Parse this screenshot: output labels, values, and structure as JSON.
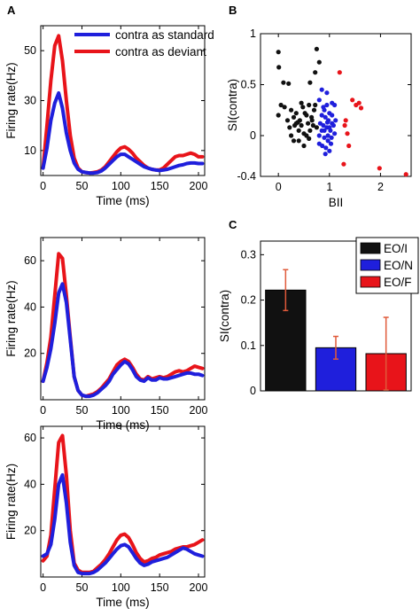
{
  "panel_letters": [
    "A",
    "B",
    "C"
  ],
  "colors": {
    "blue": "#1f1fdc",
    "red": "#e8141a",
    "black": "#111111",
    "errorbar": "#e05a3a"
  },
  "chart_data": [
    {
      "id": "A1",
      "type": "line",
      "xlabel": "Time (ms)",
      "ylabel": "Firing rate(Hz)",
      "xlim": [
        -3,
        208
      ],
      "ylim": [
        0,
        60
      ],
      "xticks": [
        0,
        50,
        100,
        150,
        200
      ],
      "yticks": [
        10,
        30,
        50
      ],
      "legend": {
        "placement": "top-right",
        "entries": [
          {
            "label": "contra as standard",
            "color": "#1f1fdc"
          },
          {
            "label": "contra as deviant",
            "color": "#e8141a"
          }
        ]
      },
      "series": [
        {
          "name": "contra as standard",
          "color": "#1f1fdc",
          "x": [
            0,
            5,
            10,
            15,
            20,
            25,
            30,
            35,
            40,
            45,
            50,
            55,
            60,
            65,
            70,
            75,
            80,
            85,
            90,
            95,
            100,
            105,
            110,
            115,
            120,
            125,
            130,
            135,
            140,
            145,
            150,
            155,
            160,
            165,
            170,
            175,
            180,
            185,
            190,
            195,
            200,
            205
          ],
          "y": [
            3,
            11,
            22,
            29,
            33,
            27,
            17,
            10,
            5,
            2.5,
            1.5,
            1.2,
            1,
            1,
            1.2,
            1.8,
            3,
            4.5,
            6,
            7.5,
            8.5,
            8.5,
            7.5,
            6.5,
            5.5,
            4.5,
            3.5,
            3,
            2.5,
            2.2,
            2,
            2.2,
            2.5,
            3,
            3.5,
            4,
            4.3,
            4.8,
            5,
            5,
            4.8,
            4.8
          ]
        },
        {
          "name": "contra as deviant",
          "color": "#e8141a",
          "x": [
            0,
            5,
            10,
            15,
            20,
            25,
            30,
            35,
            40,
            45,
            50,
            55,
            60,
            65,
            70,
            75,
            80,
            85,
            90,
            95,
            100,
            105,
            110,
            115,
            120,
            125,
            130,
            135,
            140,
            145,
            150,
            155,
            160,
            165,
            170,
            175,
            180,
            185,
            190,
            195,
            200,
            205
          ],
          "y": [
            3,
            20,
            38,
            52,
            56,
            46,
            30,
            16,
            7,
            3,
            1.5,
            1.2,
            1,
            1.2,
            1.5,
            2.2,
            3.5,
            5.5,
            7.5,
            9.5,
            11,
            11.5,
            10.5,
            9,
            7,
            5.5,
            4,
            3,
            2.5,
            2.2,
            2.2,
            3,
            4.5,
            6,
            7.5,
            8,
            8,
            8.5,
            9,
            8.5,
            7.5,
            7.5
          ]
        }
      ]
    },
    {
      "id": "A2",
      "type": "line",
      "xlabel": "Time (ms)",
      "ylabel": "Firing rate(Hz)",
      "xlim": [
        -3,
        208
      ],
      "ylim": [
        0,
        70
      ],
      "xticks": [
        0,
        50,
        100,
        150,
        200
      ],
      "yticks": [
        20,
        40,
        60
      ],
      "series": [
        {
          "name": "contra as standard",
          "color": "#1f1fdc",
          "x": [
            0,
            5,
            10,
            15,
            20,
            25,
            30,
            35,
            40,
            45,
            50,
            55,
            60,
            65,
            70,
            75,
            80,
            85,
            90,
            95,
            100,
            105,
            110,
            115,
            120,
            125,
            130,
            135,
            140,
            145,
            150,
            155,
            160,
            165,
            170,
            175,
            180,
            185,
            190,
            195,
            200,
            205
          ],
          "y": [
            8,
            14,
            22,
            33,
            46,
            50,
            42,
            26,
            10,
            4,
            2,
            1.5,
            1.5,
            2,
            3,
            4.5,
            6,
            8,
            11,
            13,
            15,
            16.5,
            15.5,
            13,
            10,
            8.5,
            8,
            9.5,
            8.5,
            8.5,
            9.5,
            9,
            9,
            9.5,
            10,
            10.5,
            11,
            11.5,
            11.5,
            11,
            11,
            10.5
          ]
        },
        {
          "name": "contra as deviant",
          "color": "#e8141a",
          "x": [
            0,
            5,
            10,
            15,
            20,
            25,
            30,
            35,
            40,
            45,
            50,
            55,
            60,
            65,
            70,
            75,
            80,
            85,
            90,
            95,
            100,
            105,
            110,
            115,
            120,
            125,
            130,
            135,
            140,
            145,
            150,
            155,
            160,
            165,
            170,
            175,
            180,
            185,
            190,
            195,
            200,
            205
          ],
          "y": [
            8,
            16,
            27,
            45,
            63,
            61,
            45,
            27,
            10,
            4,
            2,
            1.5,
            2,
            2.5,
            3.5,
            5,
            7,
            9,
            12,
            15,
            16.5,
            17.5,
            16.5,
            14,
            11,
            9,
            8.5,
            10,
            9,
            9.5,
            10,
            9.5,
            10,
            11,
            12,
            12.5,
            12,
            12.5,
            13.5,
            14.5,
            14,
            13.5
          ]
        }
      ]
    },
    {
      "id": "A3",
      "type": "line",
      "xlabel": "Time (ms)",
      "ylabel": "Firing rate(Hz)",
      "xlim": [
        -3,
        208
      ],
      "ylim": [
        0,
        65
      ],
      "xticks": [
        0,
        50,
        100,
        150,
        200
      ],
      "yticks": [
        20,
        40,
        60
      ],
      "series": [
        {
          "name": "contra as standard",
          "color": "#1f1fdc",
          "x": [
            0,
            5,
            10,
            15,
            20,
            25,
            30,
            35,
            40,
            45,
            50,
            55,
            60,
            65,
            70,
            75,
            80,
            85,
            90,
            95,
            100,
            105,
            110,
            115,
            120,
            125,
            130,
            135,
            140,
            145,
            150,
            155,
            160,
            165,
            170,
            175,
            180,
            185,
            190,
            195,
            200,
            205
          ],
          "y": [
            9,
            10,
            14,
            25,
            40,
            44,
            32,
            15,
            5,
            2,
            1.5,
            1.5,
            1.5,
            2,
            3,
            4.5,
            6,
            8,
            10,
            12,
            13.5,
            14,
            13,
            10.5,
            8,
            6,
            5,
            5.5,
            6.5,
            7,
            7.5,
            8,
            8.5,
            9.5,
            10.5,
            11.5,
            12.5,
            12,
            11,
            10,
            9.5,
            9
          ]
        },
        {
          "name": "contra as deviant",
          "color": "#e8141a",
          "x": [
            0,
            5,
            10,
            15,
            20,
            25,
            30,
            35,
            40,
            45,
            50,
            55,
            60,
            65,
            70,
            75,
            80,
            85,
            90,
            95,
            100,
            105,
            110,
            115,
            120,
            125,
            130,
            135,
            140,
            145,
            150,
            155,
            160,
            165,
            170,
            175,
            180,
            185,
            190,
            195,
            200,
            205
          ],
          "y": [
            7,
            9,
            18,
            38,
            58,
            61,
            44,
            20,
            6,
            3,
            2,
            2,
            2,
            2.5,
            4,
            5.5,
            7.5,
            10,
            13,
            16,
            18,
            18.5,
            17,
            14,
            10.5,
            8,
            6.5,
            7,
            8,
            8.5,
            9.5,
            10,
            10.5,
            11,
            12,
            12.5,
            13,
            13,
            13.5,
            14,
            15,
            16
          ]
        }
      ]
    },
    {
      "id": "B",
      "type": "scatter",
      "xlabel": "BII",
      "ylabel": "SI(contra)",
      "xlim": [
        -0.35,
        2.6
      ],
      "ylim": [
        -0.4,
        1.0
      ],
      "xticks": [
        0,
        1,
        2
      ],
      "yticks": [
        -0.4,
        0,
        0.5,
        1
      ],
      "series": [
        {
          "name": "EO/I",
          "color": "#111111",
          "x": [
            0.0,
            0.01,
            0.1,
            0.2,
            0.75,
            0.8,
            0.72,
            0.62,
            0.0,
            0.05,
            0.12,
            0.18,
            0.22,
            0.25,
            0.3,
            0.32,
            0.35,
            0.4,
            0.42,
            0.45,
            0.48,
            0.5,
            0.55,
            0.58,
            0.6,
            0.62,
            0.65,
            0.68,
            0.7,
            0.72,
            0.75,
            0.4,
            0.5,
            0.55,
            0.25,
            0.3,
            0.35,
            0.6,
            0.45,
            0.38,
            0.52,
            0.66
          ],
          "y": [
            0.82,
            0.67,
            0.52,
            0.51,
            0.85,
            0.72,
            0.62,
            0.52,
            0.2,
            0.3,
            0.28,
            0.15,
            0.08,
            0.25,
            0.18,
            0.1,
            0.22,
            0.05,
            0.15,
            0.1,
            0.28,
            0.02,
            0.2,
            0.12,
            0.3,
            0.05,
            0.18,
            0.1,
            0.25,
            0.3,
            0.08,
            -0.05,
            -0.1,
            0.0,
            0.0,
            -0.05,
            0.12,
            -0.03,
            0.32,
            0.13,
            0.22,
            0.15
          ]
        },
        {
          "name": "EO/N",
          "color": "#1f1fdc",
          "x": [
            0.85,
            0.95,
            1.05,
            1.1,
            0.8,
            0.9,
            1.0,
            0.85,
            0.92,
            0.98,
            1.05,
            0.88,
            0.95,
            1.02,
            1.1,
            0.8,
            0.9,
            0.97,
            1.03,
            0.86,
            0.93,
            1.0,
            1.08,
            0.82,
            0.95,
            1.05,
            1.12,
            0.9,
            0.97,
            0.85,
            1.0,
            0.88,
            0.96,
            1.04,
            0.92,
            0.8
          ],
          "y": [
            0.45,
            0.42,
            0.32,
            0.3,
            0.35,
            0.25,
            0.22,
            0.2,
            0.18,
            0.15,
            0.12,
            0.1,
            0.08,
            0.05,
            0.02,
            0.0,
            -0.02,
            -0.05,
            -0.08,
            -0.1,
            -0.12,
            -0.15,
            0.1,
            0.12,
            0.3,
            0.2,
            0.15,
            0.05,
            0.0,
            0.05,
            0.08,
            0.28,
            0.13,
            -0.02,
            -0.18,
            -0.08
          ]
        },
        {
          "name": "EO/F",
          "color": "#e8141a",
          "x": [
            1.2,
            1.45,
            1.52,
            1.58,
            1.62,
            1.3,
            1.32,
            1.35,
            1.38,
            1.28,
            1.98,
            2.5
          ],
          "y": [
            0.62,
            0.35,
            0.3,
            0.32,
            0.27,
            0.1,
            0.15,
            0.02,
            -0.1,
            -0.28,
            -0.32,
            -0.38
          ]
        }
      ]
    },
    {
      "id": "C",
      "type": "bar",
      "xlabel": "",
      "ylabel": "SI(contra)",
      "ylim": [
        0,
        0.33
      ],
      "yticks": [
        0,
        0.1,
        0.2,
        0.3
      ],
      "categories": [
        "EO/I",
        "EO/N",
        "EO/F"
      ],
      "values": [
        0.222,
        0.095,
        0.082
      ],
      "errors": [
        0.045,
        0.025,
        0.08
      ],
      "legend": {
        "placement": "top-right",
        "entries": [
          {
            "label": "EO/I",
            "color": "#111111"
          },
          {
            "label": "EO/N",
            "color": "#1f1fdc"
          },
          {
            "label": "EO/F",
            "color": "#e8141a"
          }
        ]
      }
    }
  ]
}
